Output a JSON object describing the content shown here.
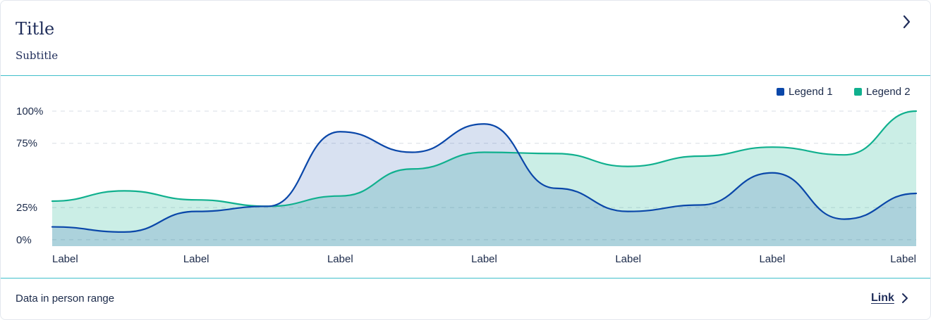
{
  "header": {
    "title": "Title",
    "subtitle": "Subtitle",
    "chevron_icon": "chevron-right-icon"
  },
  "footer": {
    "text": "Data in person range",
    "link_label": "Link",
    "link_icon": "chevron-right-icon"
  },
  "colors": {
    "series1": "#0a47a9",
    "series2": "#10b08e",
    "divider": "#3fbfca"
  },
  "chart_data": {
    "type": "area",
    "categories": [
      "Label",
      "Label",
      "Label",
      "Label",
      "Label",
      "Label",
      "Label"
    ],
    "x": [
      0,
      0.5,
      1,
      1.5,
      2,
      2.5,
      3,
      3.5,
      4,
      4.5,
      5,
      5.5,
      6
    ],
    "y_ticks": [
      "0%",
      "25%",
      "75%",
      "100%"
    ],
    "y_tick_values": [
      0,
      25,
      75,
      100
    ],
    "ylim": [
      -5,
      100
    ],
    "grid": true,
    "legend_position": "top-right",
    "series": [
      {
        "name": "Legend 1",
        "values": [
          10,
          6,
          22,
          26,
          84,
          68,
          90,
          40,
          22,
          27,
          52,
          16,
          36
        ]
      },
      {
        "name": "Legend 2",
        "values": [
          30,
          38,
          31,
          26,
          34,
          55,
          68,
          67,
          57,
          65,
          72,
          66,
          100
        ]
      }
    ]
  }
}
